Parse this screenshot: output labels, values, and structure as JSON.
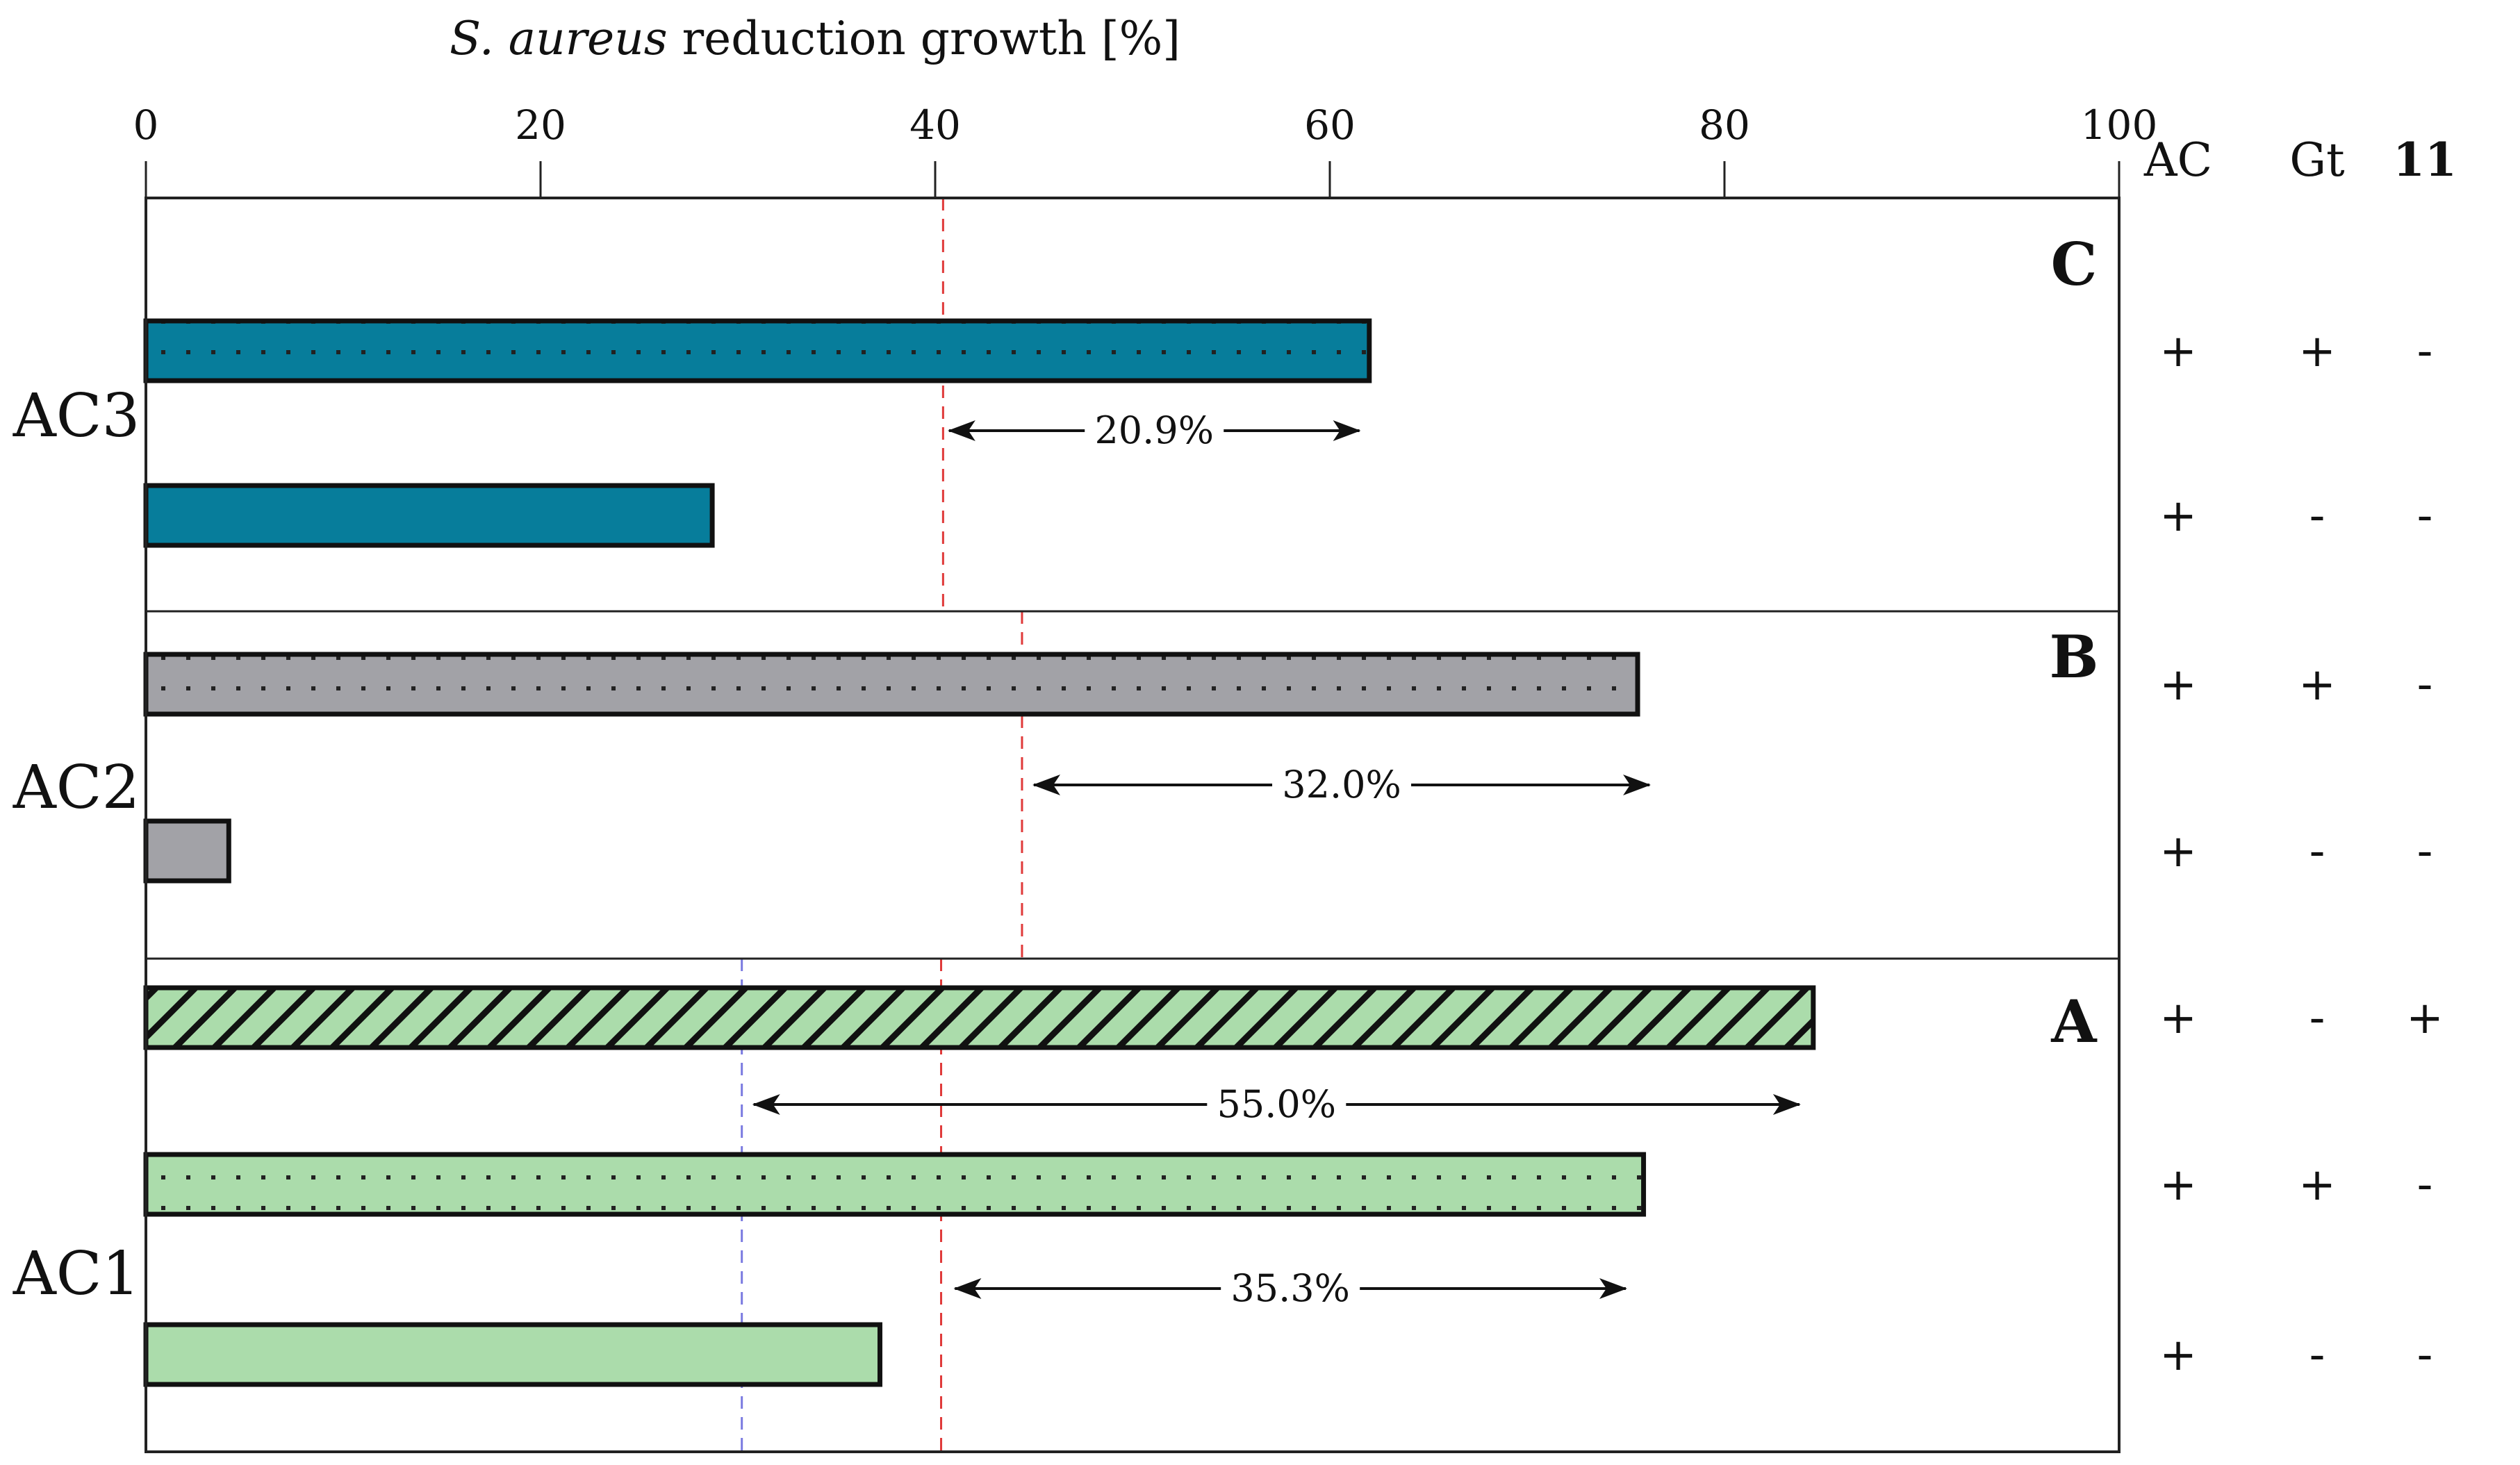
{
  "chart_data": {
    "type": "bar",
    "orientation": "horizontal",
    "title_italic": "S. aureus",
    "title_rest": " reduction growth [%]",
    "xlim": [
      0,
      100
    ],
    "x_ticks": [
      "0",
      "20",
      "40",
      "60",
      "80",
      "100"
    ],
    "x_tick_values": [
      0,
      20,
      40,
      60,
      80,
      100
    ],
    "table_headers": [
      "AC",
      "Gt",
      "11"
    ],
    "colors": {
      "AC3": "#077d9b",
      "AC2": "#a2a2a7",
      "AC1": "#abdcab",
      "ref_red": "#e03a3a",
      "ref_blue": "#7a7ae0"
    },
    "panels": [
      {
        "panel": "C",
        "group": "AC3",
        "bars": [
          {
            "value": 62,
            "pattern": "dots",
            "signs": [
              "+",
              "+",
              "-"
            ]
          },
          {
            "value": 28.7,
            "pattern": "solid",
            "signs": [
              "+",
              "-",
              "-"
            ]
          }
        ],
        "ref_line_red": 40.4,
        "annotations": [
          {
            "label": "20.9%",
            "from": 40.7,
            "to": 61.5
          }
        ]
      },
      {
        "panel": "B",
        "group": "AC2",
        "bars": [
          {
            "value": 75.6,
            "pattern": "dots",
            "signs": [
              "+",
              "+",
              "-"
            ]
          },
          {
            "value": 4.2,
            "pattern": "solid",
            "signs": [
              "+",
              "-",
              "-"
            ]
          }
        ],
        "ref_line_red": 44.4,
        "annotations": [
          {
            "label": "32.0%",
            "from": 45,
            "to": 76.2
          }
        ]
      },
      {
        "panel": "A",
        "group": "AC1",
        "bars": [
          {
            "value": 84.5,
            "pattern": "hatch",
            "signs": [
              "+",
              "-",
              "+"
            ]
          },
          {
            "value": 75.9,
            "pattern": "dots",
            "signs": [
              "+",
              "+",
              "-"
            ]
          },
          {
            "value": 37.2,
            "pattern": "solid",
            "signs": [
              "+",
              "-",
              "-"
            ]
          }
        ],
        "ref_line_red": 40.3,
        "ref_line_blue": 30.2,
        "annotations": [
          {
            "label": "55.0%",
            "from": 30.8,
            "to": 83.8
          },
          {
            "label": "35.3%",
            "from": 41,
            "to": 75
          }
        ]
      }
    ]
  }
}
